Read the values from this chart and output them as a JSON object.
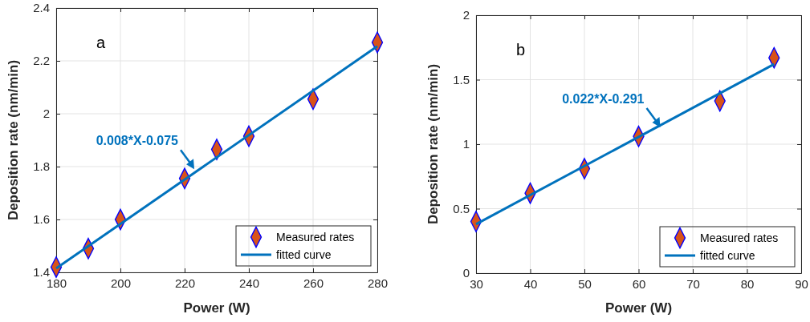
{
  "chart_data": [
    {
      "type": "scatter",
      "xlabel": "Power (W)",
      "ylabel": "Deposition rate (nm/min)",
      "xlim": [
        180,
        280
      ],
      "xticks": [
        180,
        200,
        220,
        240,
        260,
        280
      ],
      "ylim": [
        1.4,
        2.4
      ],
      "yticks": [
        1.4,
        1.6,
        1.8,
        2,
        2.2,
        2.4
      ],
      "grid": true,
      "legend": "bottom right",
      "marker": "diamond",
      "line_style": "solid",
      "annotations": [
        "a",
        {
          "text": "0.008*X-0.075",
          "x": 223,
          "y": 1.79
        }
      ],
      "series": [
        {
          "name": "Measured rates",
          "color": "#d95319",
          "x": [
            180,
            190,
            200,
            220,
            230,
            240,
            260,
            280
          ],
          "values": [
            1.42,
            1.49,
            1.6,
            1.755,
            1.865,
            1.915,
            2.055,
            2.27
          ]
        },
        {
          "name": "fitted curve",
          "type": "line",
          "marker": "none",
          "color": "#0072bd",
          "x": [
            180,
            280
          ],
          "values": [
            1.415,
            2.255
          ]
        }
      ]
    },
    {
      "type": "scatter",
      "xlabel": "Power (W)",
      "ylabel": "Deposition rate (nm/min)",
      "xlim": [
        30,
        90
      ],
      "xticks": [
        30,
        40,
        50,
        60,
        70,
        80,
        90
      ],
      "ylim": [
        0,
        2
      ],
      "yticks": [
        0,
        0.5,
        1,
        1.5,
        2
      ],
      "grid": true,
      "legend": "bottom right",
      "marker": "diamond",
      "line_style": "solid",
      "annotations": [
        "b",
        {
          "text": "0.022*X-0.291",
          "x": 64,
          "y": 1.13
        }
      ],
      "series": [
        {
          "name": "Measured rates",
          "color": "#d95319",
          "x": [
            30,
            40,
            50,
            60,
            75,
            85
          ],
          "values": [
            0.4,
            0.62,
            0.81,
            1.06,
            1.335,
            1.67
          ]
        },
        {
          "name": "fitted curve",
          "type": "line",
          "marker": "none",
          "color": "#0072bd",
          "x": [
            30,
            85
          ],
          "values": [
            0.38,
            1.62
          ]
        }
      ]
    }
  ]
}
